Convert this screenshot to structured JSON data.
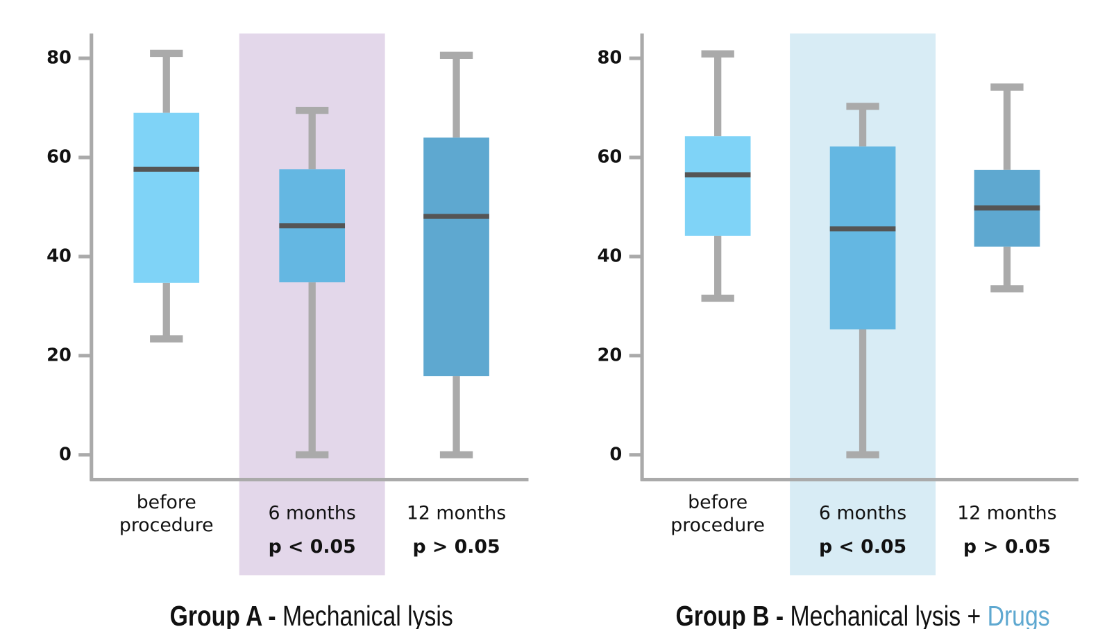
{
  "chart_data": [
    {
      "type": "box",
      "title": [
        {
          "text": "Group A - ",
          "bold": true
        },
        {
          "text": "Mechanical lysis"
        }
      ],
      "categories": [
        [
          "before",
          "procedure"
        ],
        [
          "6 months"
        ],
        [
          "12 months"
        ]
      ],
      "p_values": [
        null,
        "p < 0.05",
        "p > 0.05"
      ],
      "stats": {
        "min": [
          23.4,
          0,
          0
        ],
        "q1": [
          34.7,
          34.8,
          15.9
        ],
        "median": [
          57.6,
          46.2,
          48.1
        ],
        "q3": [
          69,
          57.6,
          64
        ],
        "max": [
          81,
          69.5,
          80.6
        ]
      },
      "colors": [
        "#7fd3f7",
        "#64b7e2",
        "#5ea8d0"
      ],
      "highlight_index": 1,
      "highlight_color": "#e3d7ea",
      "ylim": [
        -5,
        85
      ],
      "yticks": [
        0,
        20,
        40,
        60,
        80
      ]
    },
    {
      "type": "box",
      "title": [
        {
          "text": "Group B - ",
          "bold": true
        },
        {
          "text": "Mechanical lysis + "
        },
        {
          "text": "Drugs",
          "color": "#5ea8d0"
        }
      ],
      "categories": [
        [
          "before",
          "procedure"
        ],
        [
          "6 months"
        ],
        [
          "12 months"
        ]
      ],
      "p_values": [
        null,
        "p < 0.05",
        "p > 0.05"
      ],
      "stats": {
        "min": [
          31.6,
          0,
          33.5
        ],
        "q1": [
          44.2,
          25.3,
          42
        ],
        "median": [
          56.5,
          45.6,
          49.8
        ],
        "q3": [
          64.3,
          62.2,
          57.5
        ],
        "max": [
          80.9,
          70.3,
          74.2
        ]
      },
      "colors": [
        "#7fd3f7",
        "#64b7e2",
        "#5ea8d0"
      ],
      "highlight_index": 1,
      "highlight_color": "#d8ecf5",
      "ylim": [
        -5,
        85
      ],
      "yticks": [
        0,
        20,
        40,
        60,
        80
      ]
    }
  ]
}
